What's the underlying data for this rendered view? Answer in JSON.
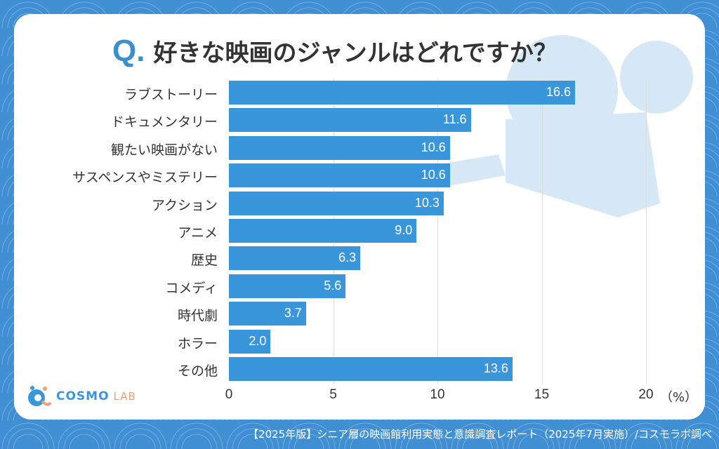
{
  "title": {
    "prefix": "Q.",
    "text": "好きな映画のジャンルはどれですか？"
  },
  "chart_data": {
    "type": "bar",
    "orientation": "horizontal",
    "categories": [
      "ラブストーリー",
      "ドキュメンタリー",
      "観たい映画がない",
      "サスペンスやミステリー",
      "アクション",
      "アニメ",
      "歴史",
      "コメディ",
      "時代劇",
      "ホラー",
      "その他"
    ],
    "values": [
      16.6,
      11.6,
      10.6,
      10.6,
      10.3,
      9.0,
      6.3,
      5.6,
      3.7,
      2.0,
      13.6
    ],
    "value_labels": [
      "16.6",
      "11.6",
      "10.6",
      "10.6",
      "10.3",
      "9.0",
      "6.3",
      "5.6",
      "3.7",
      "2.0",
      "13.6"
    ],
    "xlim": [
      0,
      20
    ],
    "xticks": [
      "0",
      "5",
      "10",
      "15",
      "20"
    ],
    "xunit": "（%）",
    "grid": true,
    "bar_color": "#3a96db"
  },
  "logo": {
    "text1": "COSMO",
    "text2": "LAB"
  },
  "footer": "【2025年版】シニア層の映画館利用実態と意識調査レポート（2025年7月実施）/コスモラボ調べ",
  "colors": {
    "background": "#3f8fd2",
    "card": "#ffffff",
    "accent": "#3a8fcc"
  }
}
